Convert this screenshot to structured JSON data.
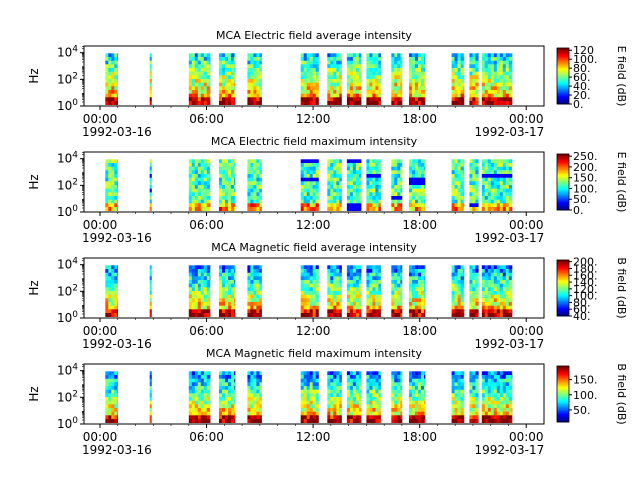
{
  "chart_data": [
    {
      "type": "heatmap",
      "title": "MCA  Electric field average intensity",
      "ylabel": "Hz",
      "yticks": [
        "10^0",
        "10^2",
        "10^4"
      ],
      "ylim": [
        1,
        31623
      ],
      "yscale": "log",
      "xtick_times": [
        "00:00",
        "06:00",
        "12:00",
        "18:00",
        "00:00"
      ],
      "xtick_hours": [
        0,
        6,
        12,
        18,
        24
      ],
      "start_date": "1992-03-16",
      "end_date": "1992-03-17",
      "xlim_hours": [
        -0.9,
        25
      ],
      "colorbar_label": "E field (dB)",
      "colorbar_ticks": [
        "0.",
        "20.",
        "40.",
        "60.",
        "80.",
        "100.",
        "120"
      ],
      "clim": [
        0,
        125
      ],
      "base_intensity": 0.55,
      "freq_gradient": -0.25,
      "data_segments_hours": [
        [
          0.3,
          1.0
        ],
        [
          2.8,
          2.9
        ],
        [
          5.0,
          6.2
        ],
        [
          6.7,
          7.6
        ],
        [
          8.3,
          9.1
        ],
        [
          11.3,
          12.3
        ],
        [
          12.8,
          13.6
        ],
        [
          13.9,
          14.7
        ],
        [
          15.0,
          15.8
        ],
        [
          16.4,
          17.0
        ],
        [
          17.4,
          18.3
        ],
        [
          19.8,
          20.5
        ],
        [
          20.8,
          21.3
        ],
        [
          21.5,
          23.2
        ]
      ]
    },
    {
      "type": "heatmap",
      "title": "MCA  Electric field maximum intensity",
      "ylabel": "Hz",
      "yticks": [
        "10^0",
        "10^2",
        "10^4"
      ],
      "ylim": [
        1,
        31623
      ],
      "yscale": "log",
      "xtick_times": [
        "00:00",
        "06:00",
        "12:00",
        "18:00",
        "00:00"
      ],
      "xtick_hours": [
        0,
        6,
        12,
        18,
        24
      ],
      "start_date": "1992-03-16",
      "end_date": "1992-03-17",
      "xlim_hours": [
        -0.9,
        25
      ],
      "colorbar_label": "E field (dB)",
      "colorbar_ticks": [
        "0.",
        "50.",
        "100.",
        "150.",
        "200.",
        "250."
      ],
      "clim": [
        0,
        260
      ],
      "base_intensity": 0.45,
      "freq_gradient": 0.0,
      "data_segments_hours": [
        [
          0.3,
          1.0
        ],
        [
          2.8,
          2.9
        ],
        [
          5.0,
          6.2
        ],
        [
          6.7,
          7.6
        ],
        [
          8.3,
          9.1
        ],
        [
          11.3,
          12.3
        ],
        [
          12.8,
          13.6
        ],
        [
          13.9,
          14.7
        ],
        [
          15.0,
          15.8
        ],
        [
          16.4,
          17.0
        ],
        [
          17.4,
          18.3
        ],
        [
          19.8,
          20.5
        ],
        [
          20.8,
          21.3
        ],
        [
          21.5,
          23.2
        ]
      ]
    },
    {
      "type": "heatmap",
      "title": "MCA  Magnetic field average intensity",
      "ylabel": "Hz",
      "yticks": [
        "10^0",
        "10^2",
        "10^4"
      ],
      "ylim": [
        1,
        31623
      ],
      "yscale": "log",
      "xtick_times": [
        "00:00",
        "06:00",
        "12:00",
        "18:00",
        "00:00"
      ],
      "xtick_hours": [
        0,
        6,
        12,
        18,
        24
      ],
      "start_date": "1992-03-16",
      "end_date": "1992-03-17",
      "xlim_hours": [
        -0.9,
        25
      ],
      "colorbar_label": "B field (dB)",
      "colorbar_ticks": [
        "40.",
        "60.",
        "80.",
        "100.",
        "120.",
        "140.",
        "160.",
        "180.",
        "200."
      ],
      "clim": [
        40,
        205
      ],
      "base_intensity": 0.5,
      "freq_gradient": -0.3,
      "data_segments_hours": [
        [
          0.3,
          1.0
        ],
        [
          2.8,
          2.9
        ],
        [
          5.0,
          6.2
        ],
        [
          6.7,
          7.6
        ],
        [
          8.3,
          9.1
        ],
        [
          11.3,
          12.3
        ],
        [
          12.8,
          13.6
        ],
        [
          13.9,
          14.7
        ],
        [
          15.0,
          15.8
        ],
        [
          16.4,
          17.0
        ],
        [
          17.4,
          18.3
        ],
        [
          19.8,
          20.5
        ],
        [
          20.8,
          21.3
        ],
        [
          21.5,
          23.2
        ]
      ]
    },
    {
      "type": "heatmap",
      "title": "MCA  Magnetic field maximum intensity",
      "ylabel": "Hz",
      "yticks": [
        "10^0",
        "10^2",
        "10^4"
      ],
      "ylim": [
        1,
        31623
      ],
      "yscale": "log",
      "xtick_times": [
        "00:00",
        "06:00",
        "12:00",
        "18:00",
        "00:00"
      ],
      "xtick_hours": [
        0,
        6,
        12,
        18,
        24
      ],
      "start_date": "1992-03-16",
      "end_date": "1992-03-17",
      "xlim_hours": [
        -0.9,
        25
      ],
      "colorbar_label": "B field (dB)",
      "colorbar_ticks": [
        "50.",
        "100.",
        "150."
      ],
      "clim": [
        10,
        195
      ],
      "base_intensity": 0.5,
      "freq_gradient": -0.3,
      "data_segments_hours": [
        [
          0.3,
          1.0
        ],
        [
          2.8,
          2.9
        ],
        [
          5.0,
          6.2
        ],
        [
          6.7,
          7.6
        ],
        [
          8.3,
          9.1
        ],
        [
          11.3,
          12.3
        ],
        [
          12.8,
          13.6
        ],
        [
          13.9,
          14.7
        ],
        [
          15.0,
          15.8
        ],
        [
          16.4,
          17.0
        ],
        [
          17.4,
          18.3
        ],
        [
          19.8,
          20.5
        ],
        [
          20.8,
          21.3
        ],
        [
          21.5,
          23.2
        ]
      ]
    }
  ]
}
